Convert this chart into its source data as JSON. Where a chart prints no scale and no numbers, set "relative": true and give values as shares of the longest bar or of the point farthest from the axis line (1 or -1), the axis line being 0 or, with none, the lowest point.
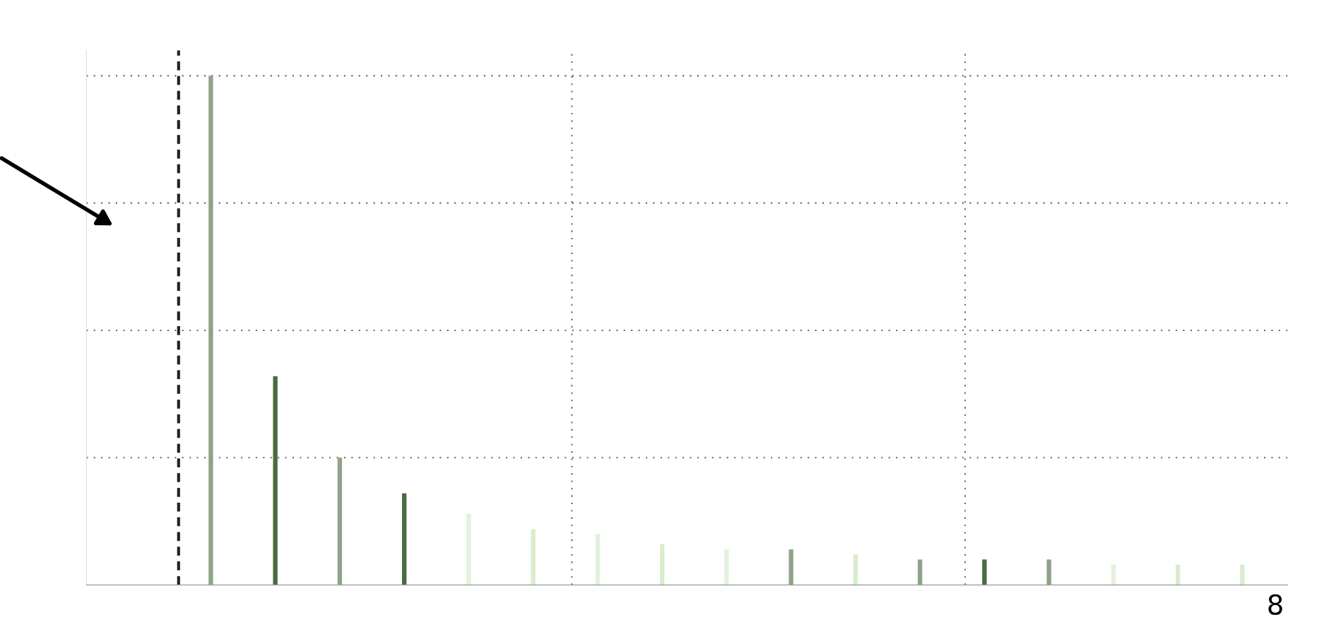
{
  "chart_data": {
    "type": "bar",
    "relative": true,
    "tick_labels": false,
    "grid": true,
    "categories": [
      null,
      null,
      null,
      null,
      null,
      null,
      null,
      null,
      null,
      null,
      null,
      null,
      null,
      null,
      null,
      null,
      null
    ],
    "values": [
      1.0,
      0.41,
      0.25,
      0.18,
      0.14,
      0.11,
      0.1,
      0.08,
      0.07,
      0.07,
      0.06,
      0.05,
      0.05,
      0.05,
      0.04,
      0.04,
      0.04
    ],
    "colors": [
      "#8fa38a",
      "#4a6b40",
      "#8fa38a",
      "#4a6b40",
      "#e2f2dc",
      "#d8ecd0",
      "#e2f2dc",
      "#d8ecd0",
      "#e2f2dc",
      "#8fa38a",
      "#d8ecd0",
      "#8fa38a",
      "#4a6b40",
      "#8fa38a",
      "#e2f2dc",
      "#d8ecd0",
      "#d8ecd0"
    ],
    "annotations": [
      "8"
    ]
  }
}
